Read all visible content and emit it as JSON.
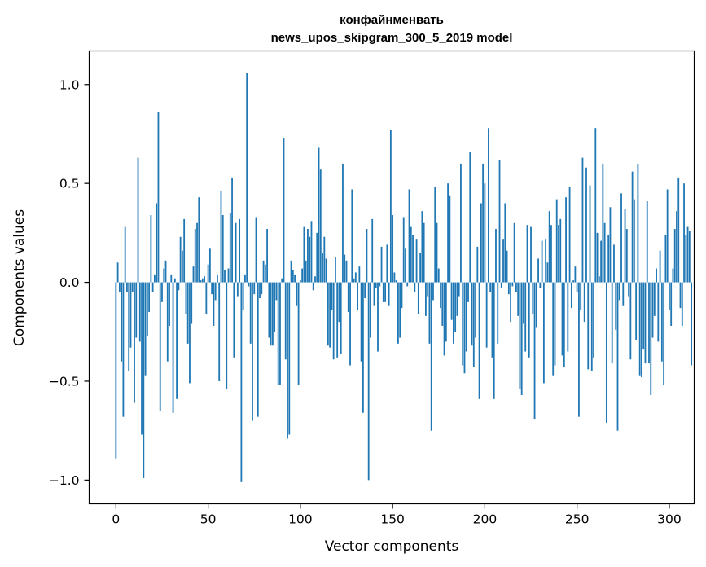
{
  "chart_data": {
    "type": "bar",
    "title_line1": "конфайнменвать",
    "title_line2": "news_upos_skipgram_300_5_2019 model",
    "xlabel": "Vector components",
    "ylabel": "Components values",
    "xlim": [
      -14.5,
      313.5
    ],
    "ylim": [
      -1.12,
      1.17
    ],
    "x_ticks": [
      0,
      50,
      100,
      150,
      200,
      250,
      300
    ],
    "x_tick_labels": [
      "0",
      "50",
      "100",
      "150",
      "200",
      "250",
      "300"
    ],
    "y_ticks": [
      -1.0,
      -0.5,
      0.0,
      0.5,
      1.0
    ],
    "y_tick_labels": [
      "−1.0",
      "−0.5",
      "0.0",
      "0.5",
      "1.0"
    ],
    "bar_color": "#1f77b4",
    "values": [
      -0.89,
      0.1,
      -0.05,
      -0.4,
      -0.68,
      0.28,
      -0.05,
      -0.45,
      -0.33,
      -0.05,
      -0.61,
      -0.28,
      0.63,
      -0.3,
      -0.77,
      -0.99,
      -0.47,
      -0.27,
      -0.15,
      0.34,
      -0.05,
      0.04,
      0.4,
      0.86,
      -0.65,
      -0.1,
      0.07,
      0.11,
      -0.4,
      -0.22,
      0.04,
      -0.66,
      0.02,
      -0.59,
      -0.04,
      0.23,
      0.16,
      0.32,
      -0.16,
      -0.31,
      -0.51,
      -0.21,
      0.08,
      0.27,
      0.3,
      0.43,
      0.01,
      0.02,
      0.03,
      -0.16,
      0.09,
      0.17,
      -0.06,
      -0.22,
      -0.09,
      0.04,
      -0.5,
      0.46,
      0.34,
      0.06,
      -0.54,
      0.07,
      0.35,
      0.53,
      -0.38,
      0.3,
      -0.07,
      0.32,
      -1.01,
      -0.14,
      0.04,
      1.06,
      -0.02,
      -0.31,
      -0.7,
      -0.06,
      0.33,
      -0.68,
      -0.08,
      -0.06,
      0.11,
      0.09,
      0.27,
      -0.28,
      -0.32,
      -0.32,
      -0.25,
      -0.09,
      -0.52,
      -0.52,
      0.02,
      0.73,
      -0.39,
      -0.79,
      -0.77,
      0.11,
      0.06,
      0.04,
      -0.12,
      -0.52,
      0.01,
      0.07,
      0.28,
      0.11,
      0.27,
      0.23,
      0.31,
      -0.04,
      0.03,
      0.25,
      0.68,
      0.57,
      0.15,
      0.23,
      0.12,
      -0.32,
      -0.33,
      -0.14,
      -0.39,
      0.13,
      -0.38,
      -0.2,
      -0.36,
      0.6,
      0.14,
      0.11,
      -0.15,
      -0.42,
      0.47,
      0.02,
      0.05,
      -0.14,
      0.08,
      -0.4,
      -0.66,
      -0.08,
      0.27,
      -1.0,
      -0.28,
      0.32,
      -0.12,
      -0.03,
      -0.35,
      -0.02,
      0.18,
      -0.1,
      -0.1,
      0.19,
      -0.12,
      0.77,
      0.34,
      0.05,
      0.01,
      -0.31,
      -0.28,
      -0.13,
      0.33,
      0.17,
      -0.02,
      0.47,
      0.28,
      0.24,
      -0.05,
      0.22,
      -0.16,
      0.15,
      0.36,
      0.3,
      -0.17,
      -0.07,
      -0.31,
      -0.75,
      -0.09,
      0.48,
      0.3,
      0.07,
      -0.13,
      -0.22,
      -0.37,
      -0.3,
      0.5,
      0.44,
      -0.19,
      -0.31,
      -0.25,
      -0.17,
      -0.07,
      0.6,
      -0.42,
      -0.46,
      -0.35,
      -0.1,
      0.66,
      -0.32,
      -0.43,
      -0.28,
      0.18,
      -0.59,
      0.4,
      0.6,
      0.5,
      -0.33,
      0.78,
      -0.05,
      -0.38,
      -0.59,
      0.27,
      -0.31,
      0.62,
      -0.03,
      0.22,
      0.4,
      0.16,
      -0.06,
      -0.2,
      -0.02,
      0.3,
      -0.05,
      -0.17,
      -0.54,
      -0.57,
      -0.21,
      -0.35,
      0.29,
      -0.38,
      0.28,
      -0.16,
      -0.69,
      -0.23,
      0.12,
      -0.03,
      0.21,
      -0.51,
      0.22,
      0.1,
      0.36,
      0.29,
      -0.47,
      -0.42,
      0.42,
      0.29,
      0.32,
      -0.37,
      -0.43,
      0.43,
      -0.35,
      0.48,
      -0.13,
      0.01,
      0.08,
      -0.05,
      -0.68,
      -0.14,
      0.63,
      -0.2,
      0.58,
      -0.44,
      0.49,
      -0.45,
      -0.38,
      0.78,
      0.25,
      0.03,
      0.21,
      0.6,
      0.3,
      -0.71,
      0.24,
      0.38,
      -0.41,
      0.19,
      -0.24,
      -0.75,
      -0.09,
      0.45,
      -0.12,
      0.37,
      0.27,
      -0.07,
      -0.39,
      0.56,
      0.42,
      -0.29,
      0.6,
      -0.47,
      -0.48,
      -0.34,
      -0.41,
      0.41,
      -0.41,
      -0.57,
      -0.28,
      -0.17,
      0.07,
      -0.3,
      0.16,
      -0.4,
      -0.52,
      0.24,
      0.47,
      -0.14,
      -0.22,
      0.07,
      0.27,
      0.36,
      0.53,
      -0.13,
      -0.22,
      0.5,
      0.24,
      0.28,
      0.26,
      -0.42
    ]
  }
}
